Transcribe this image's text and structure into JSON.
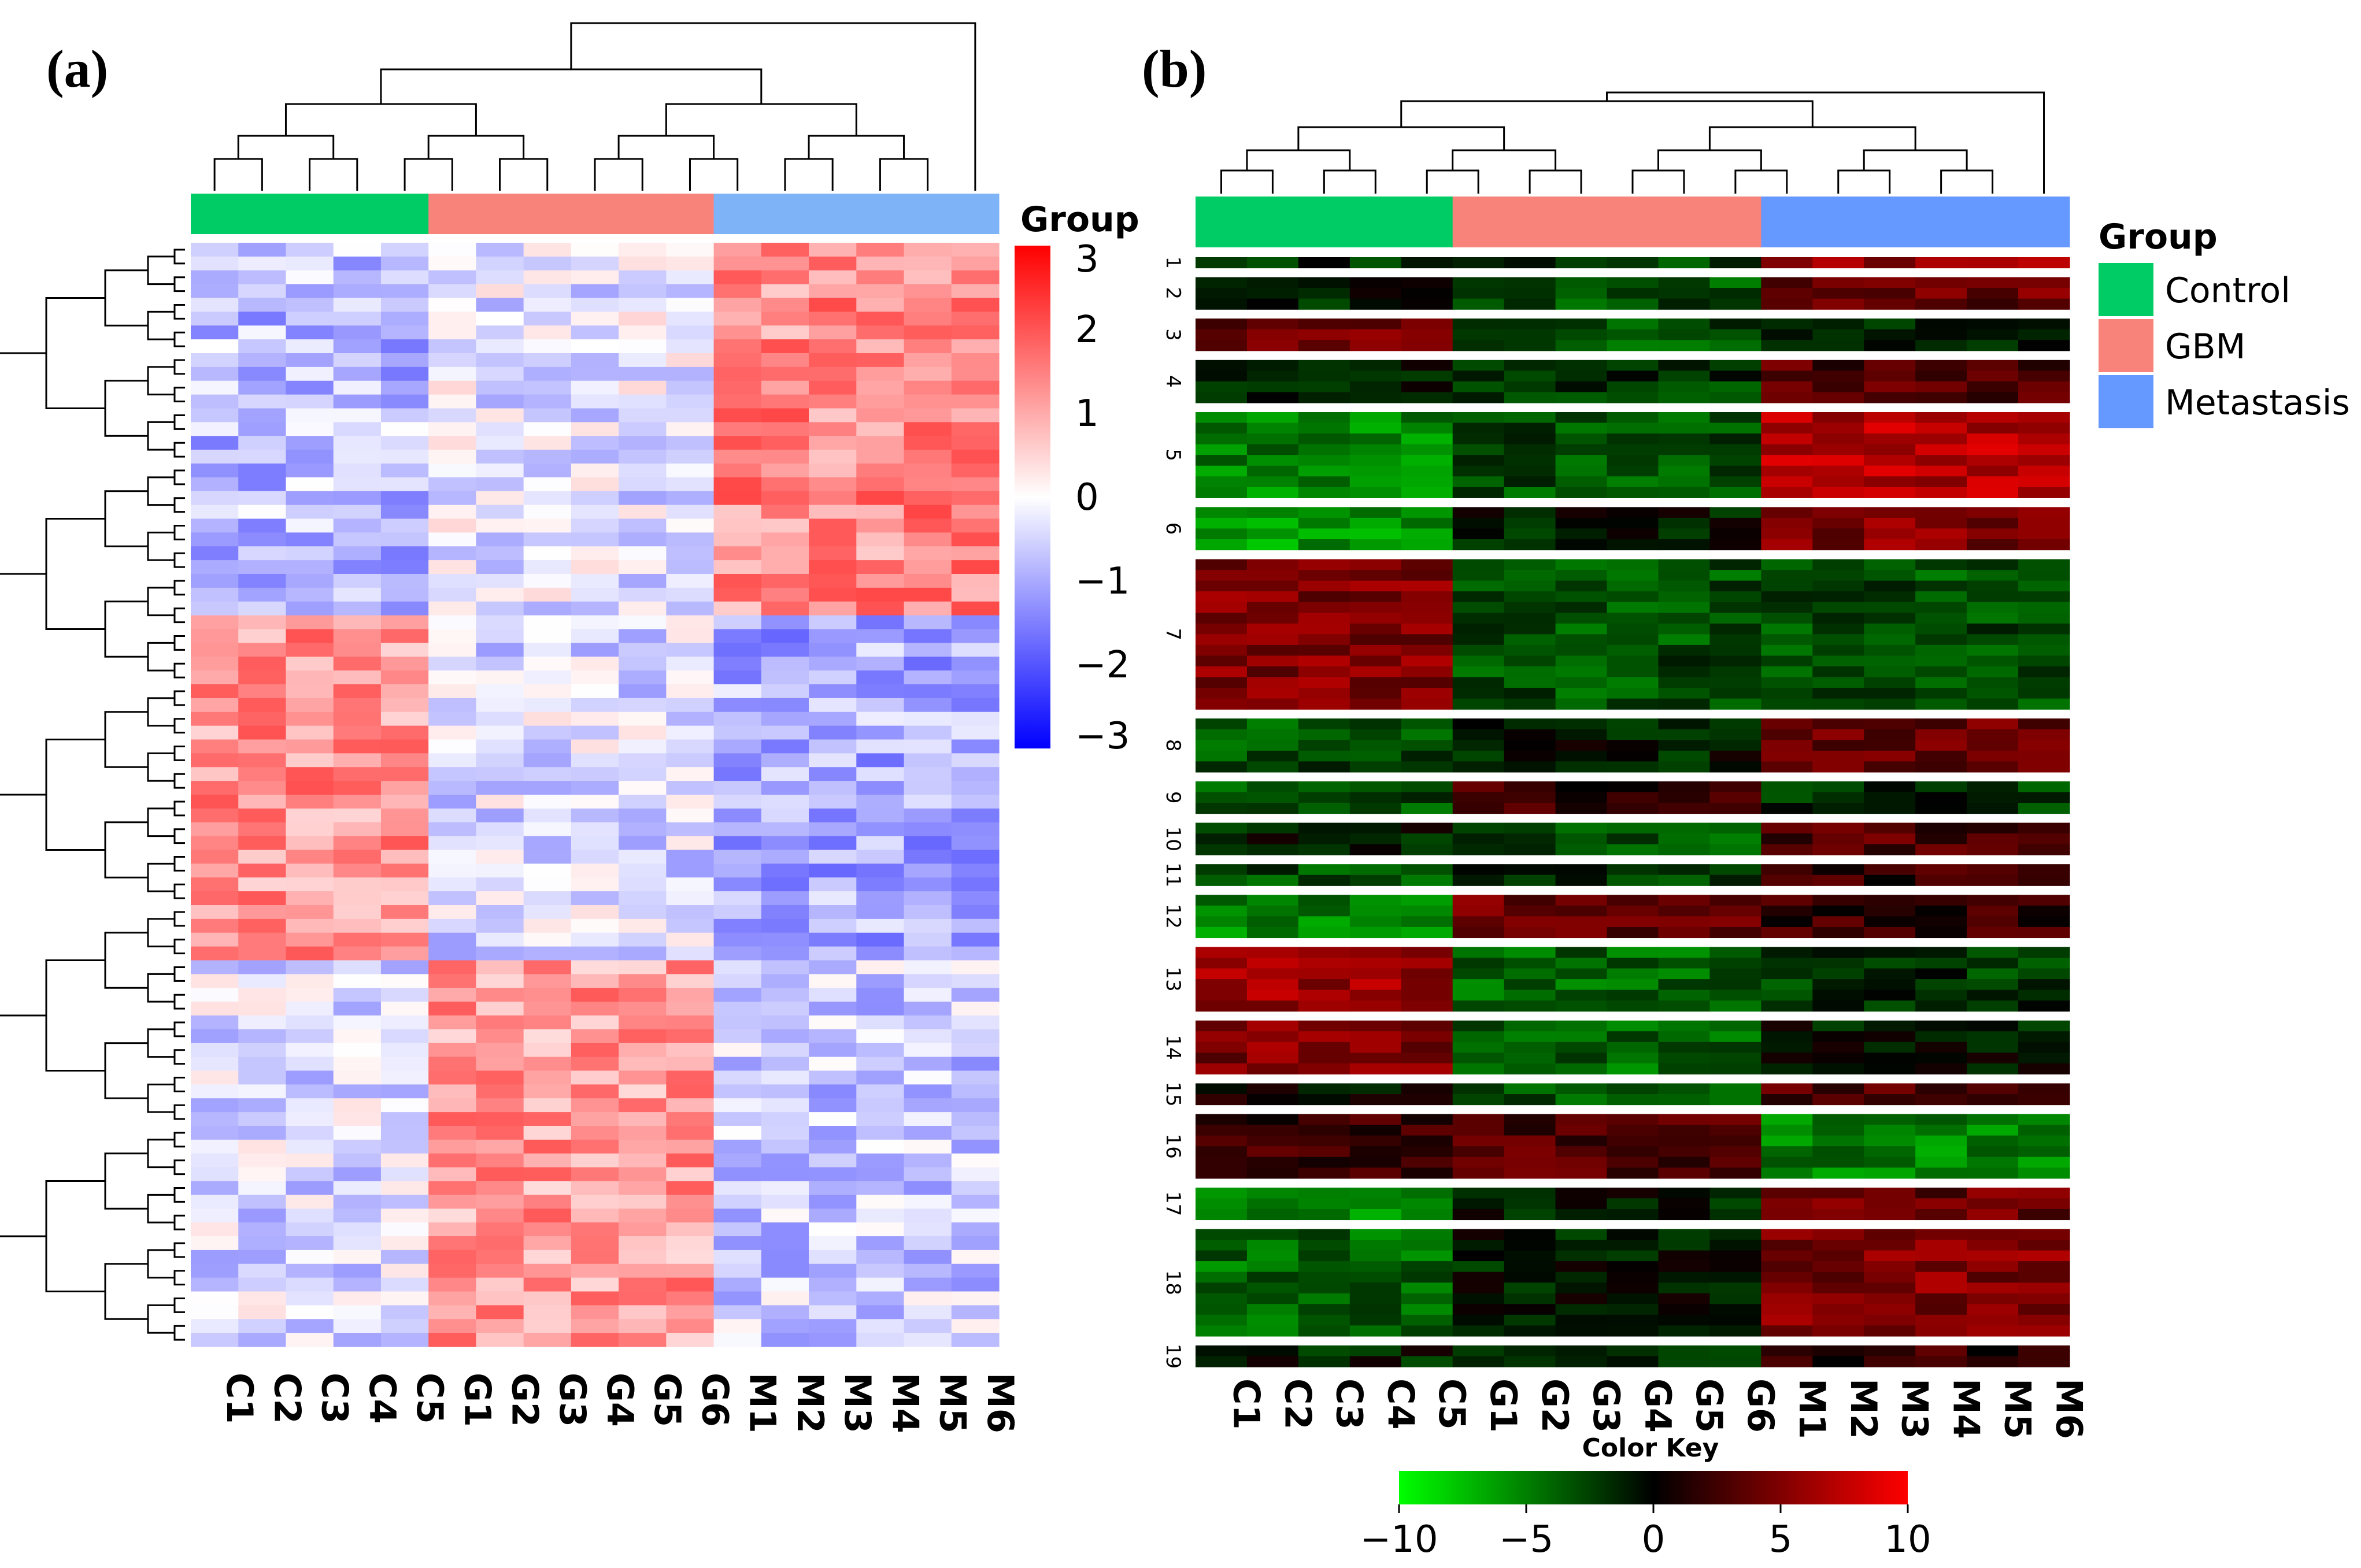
{
  "chart_data": [
    {
      "panel": "(a)",
      "type": "heatmap",
      "columns": [
        "C1",
        "C2",
        "C3",
        "C4",
        "C5",
        "G1",
        "G2",
        "G3",
        "G4",
        "G5",
        "G6",
        "M1",
        "M2",
        "M3",
        "M4",
        "M5",
        "M6"
      ],
      "row_count": 80,
      "groups": [
        {
          "name": "Control",
          "color": "#00cc66",
          "columns": [
            "C1",
            "C2",
            "C3",
            "C4",
            "C5"
          ]
        },
        {
          "name": "GBM",
          "color": "#f8837a",
          "columns": [
            "G1",
            "G2",
            "G3",
            "G4",
            "G5",
            "G6"
          ]
        },
        {
          "name": "Metastasis",
          "color": "#7fb3f7",
          "columns": [
            "M1",
            "M2",
            "M3",
            "M4",
            "M5",
            "M6"
          ]
        }
      ],
      "legend_title": "Group",
      "scale": {
        "ticks": [
          "3",
          "2",
          "1",
          "0",
          "−1",
          "−2",
          "−3"
        ],
        "min": -3,
        "max": 3,
        "low_color": "#0000ff",
        "mid_color": "#ffffff",
        "high_color": "#ff0000"
      },
      "blocks": [
        {
          "rows": [
            0,
            27
          ],
          "pattern": {
            "Control": -0.8,
            "GBM": -0.3,
            "Metastasis": 1.4
          }
        },
        {
          "rows": [
            27,
            52
          ],
          "pattern": {
            "Control": 1.3,
            "GBM": -0.4,
            "Metastasis": -1.0
          }
        },
        {
          "rows": [
            52,
            80
          ],
          "pattern": {
            "Control": -0.4,
            "GBM": 1.2,
            "Metastasis": -0.6
          }
        }
      ]
    },
    {
      "panel": "(b)",
      "type": "heatmap",
      "columns": [
        "C1",
        "C2",
        "C3",
        "C4",
        "C5",
        "G1",
        "G2",
        "G3",
        "G4",
        "G5",
        "G6",
        "M1",
        "M2",
        "M3",
        "M4",
        "M5",
        "M6"
      ],
      "groups": [
        {
          "name": "Control",
          "color": "#00cc66",
          "columns": [
            "C1",
            "C2",
            "C3",
            "C4",
            "C5"
          ]
        },
        {
          "name": "GBM",
          "color": "#f8837a",
          "columns": [
            "G1",
            "G2",
            "G3",
            "G4",
            "G5",
            "G6"
          ]
        },
        {
          "name": "Metastasis",
          "color": "#6699ff",
          "columns": [
            "M1",
            "M2",
            "M3",
            "M4",
            "M5",
            "M6"
          ]
        }
      ],
      "legend_title": "Group",
      "legend_items": [
        "Control",
        "GBM",
        "Metastasis"
      ],
      "color_key": {
        "title": "Color Key",
        "ticks": [
          "−10",
          "−5",
          "0",
          "5",
          "10"
        ],
        "min": -10,
        "max": 10,
        "low_color": "#00ff00",
        "mid_color": "#000000",
        "high_color": "#ff0000"
      },
      "clusters": [
        {
          "label": "1",
          "rows": 1,
          "pattern": {
            "Control": -2,
            "GBM": -2,
            "Metastasis": 6
          }
        },
        {
          "label": "2",
          "rows": 3,
          "pattern": {
            "Control": -1,
            "GBM": -3,
            "Metastasis": 4
          }
        },
        {
          "label": "3",
          "rows": 3,
          "pattern": {
            "Control": 4,
            "GBM": -3,
            "Metastasis": -1
          }
        },
        {
          "label": "4",
          "rows": 4,
          "pattern": {
            "Control": -1,
            "GBM": -2,
            "Metastasis": 3
          }
        },
        {
          "label": "5",
          "rows": 8,
          "pattern": {
            "Control": -5,
            "GBM": -3,
            "Metastasis": 7
          }
        },
        {
          "label": "6",
          "rows": 4,
          "pattern": {
            "Control": -6,
            "GBM": -1,
            "Metastasis": 5
          }
        },
        {
          "label": "7",
          "rows": 14,
          "pattern": {
            "Control": 5,
            "GBM": -3,
            "Metastasis": -3
          }
        },
        {
          "label": "8",
          "rows": 5,
          "pattern": {
            "Control": -3,
            "GBM": -1,
            "Metastasis": 4
          }
        },
        {
          "label": "9",
          "rows": 3,
          "pattern": {
            "Control": -3,
            "GBM": 2,
            "Metastasis": -2
          }
        },
        {
          "label": "10",
          "rows": 3,
          "pattern": {
            "Control": -1,
            "GBM": -3,
            "Metastasis": 3
          }
        },
        {
          "label": "11",
          "rows": 2,
          "pattern": {
            "Control": -3,
            "GBM": -2,
            "Metastasis": 2
          }
        },
        {
          "label": "12",
          "rows": 4,
          "pattern": {
            "Control": -5,
            "GBM": 4,
            "Metastasis": 2
          }
        },
        {
          "label": "13",
          "rows": 6,
          "pattern": {
            "Control": 6,
            "GBM": -4,
            "Metastasis": -2
          }
        },
        {
          "label": "14",
          "rows": 5,
          "pattern": {
            "Control": 5,
            "GBM": -4,
            "Metastasis": -1
          }
        },
        {
          "label": "15",
          "rows": 2,
          "pattern": {
            "Control": 0,
            "GBM": -3,
            "Metastasis": 3
          }
        },
        {
          "label": "16",
          "rows": 6,
          "pattern": {
            "Control": 2,
            "GBM": 3,
            "Metastasis": -5
          }
        },
        {
          "label": "17",
          "rows": 3,
          "pattern": {
            "Control": -5,
            "GBM": -1,
            "Metastasis": 4
          }
        },
        {
          "label": "18",
          "rows": 10,
          "pattern": {
            "Control": -4,
            "GBM": -1,
            "Metastasis": 5
          }
        },
        {
          "label": "19",
          "rows": 2,
          "pattern": {
            "Control": -1,
            "GBM": -1,
            "Metastasis": 2
          }
        }
      ]
    }
  ],
  "labels": {
    "a": "(a)",
    "b": "(b)",
    "group_title": "Group"
  }
}
